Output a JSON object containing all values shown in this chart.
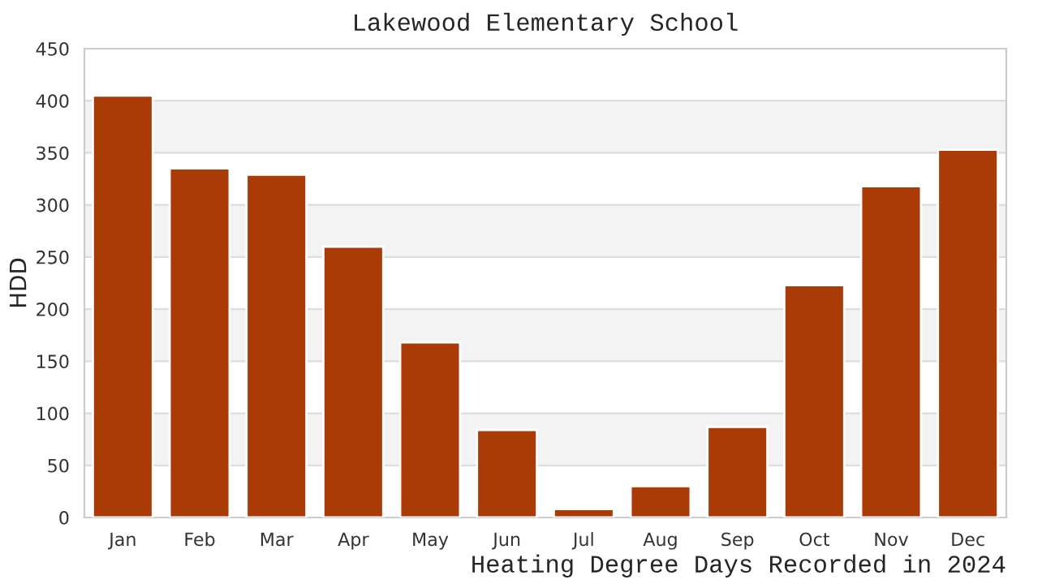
{
  "chart_data": {
    "type": "bar",
    "title": "Lakewood Elementary School",
    "xlabel": "Heating Degree Days Recorded in 2024",
    "ylabel": "HDD",
    "categories": [
      "Jan",
      "Feb",
      "Mar",
      "Apr",
      "May",
      "Jun",
      "Jul",
      "Aug",
      "Sep",
      "Oct",
      "Nov",
      "Dec"
    ],
    "series": [
      {
        "color": "#aa3a06",
        "values": [
          405,
          335,
          329,
          260,
          168,
          84,
          8,
          30,
          87,
          223,
          318,
          353
        ]
      }
    ],
    "ylim": [
      0,
      450
    ],
    "yticks": [
      0,
      50,
      100,
      150,
      200,
      250,
      300,
      350,
      400,
      450
    ],
    "grid": "y",
    "legend": false,
    "bands": [
      {
        "axis": "y",
        "from": 50,
        "to": 100,
        "color": "#f3f3f3"
      },
      {
        "axis": "y",
        "from": 150,
        "to": 200,
        "color": "#f3f3f3"
      },
      {
        "axis": "y",
        "from": 250,
        "to": 300,
        "color": "#f3f3f3"
      },
      {
        "axis": "y",
        "from": 350,
        "to": 400,
        "color": "#f3f3f3"
      }
    ]
  }
}
